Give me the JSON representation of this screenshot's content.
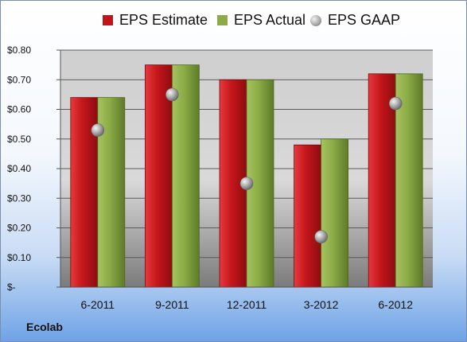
{
  "chart_data": {
    "type": "bar",
    "categories": [
      "6-2011",
      "9-2011",
      "12-2011",
      "3-2012",
      "6-2012"
    ],
    "series": [
      {
        "name": "EPS Estimate",
        "values": [
          0.64,
          0.75,
          0.7,
          0.48,
          0.72
        ],
        "color": "#c0151a"
      },
      {
        "name": "EPS Actual",
        "values": [
          0.64,
          0.75,
          0.7,
          0.5,
          0.72
        ],
        "color": "#8aab45"
      },
      {
        "name": "EPS GAAP",
        "values": [
          0.53,
          0.65,
          0.35,
          0.17,
          0.62
        ],
        "color": "#a0a0a0",
        "marker": "sphere"
      }
    ],
    "ylim": [
      0,
      0.8
    ],
    "yticks": [
      0,
      0.1,
      0.2,
      0.3,
      0.4,
      0.5,
      0.6,
      0.7,
      0.8
    ],
    "ytick_labels": [
      "$-",
      "$0.10",
      "$0.20",
      "$0.30",
      "$0.40",
      "$0.50",
      "$0.60",
      "$0.70",
      "$0.80"
    ],
    "grid": true,
    "legend_position": "top"
  },
  "company_label": "Ecolab"
}
